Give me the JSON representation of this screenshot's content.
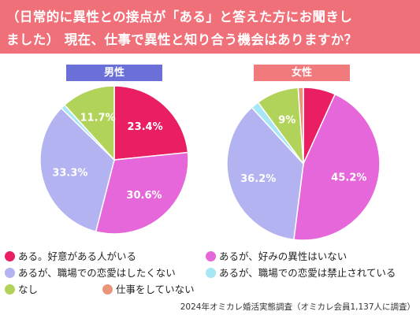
{
  "header": {
    "line1": "（日常的に異性との接点が「ある」と答えた方にお聞きし",
    "line2": "ました） 現在、仕事で異性と知り合う機会はありますか？"
  },
  "legend": [
    {
      "label": "ある。好意がある人がいる",
      "color": "#e91e63"
    },
    {
      "label": "あるが、好みの異性はいない",
      "color": "#e667d9"
    },
    {
      "label": "あるが、職場での恋愛はしたくない",
      "color": "#b3b3f2"
    },
    {
      "label": "あるが、職場での恋愛は禁止されている",
      "color": "#a7e6f5"
    },
    {
      "label": "なし",
      "color": "#b2d35a"
    },
    {
      "label": "仕事をしていない",
      "color": "#e9957a"
    }
  ],
  "source": "2024年オミカレ婚活実態調査（オミカレ会員1,137人に調査）",
  "chart_data": [
    {
      "type": "pie",
      "title": "男性",
      "title_color": "#6b70d9",
      "categories": [
        "ある。好意がある人がいる",
        "あるが、好みの異性はいない",
        "あるが、職場での恋愛はしたくない",
        "あるが、職場での恋愛は禁止されている",
        "なし",
        "仕事をしていない"
      ],
      "values": [
        23.4,
        30.6,
        33.3,
        1.0,
        11.7,
        0.0
      ],
      "labels": [
        "23.4%",
        "30.6%",
        "33.3%",
        "",
        "11.7%",
        ""
      ]
    },
    {
      "type": "pie",
      "title": "女性",
      "title_color": "#f07a7c",
      "categories": [
        "ある。好意がある人がいる",
        "あるが、好みの異性はいない",
        "あるが、職場での恋愛はしたくない",
        "あるが、職場での恋愛は禁止されている",
        "なし",
        "仕事をしていない"
      ],
      "values": [
        6.8,
        45.2,
        36.2,
        1.7,
        9,
        1.1
      ],
      "labels": [
        "",
        "45.2%",
        "36.2%",
        "",
        "9%",
        ""
      ]
    }
  ]
}
